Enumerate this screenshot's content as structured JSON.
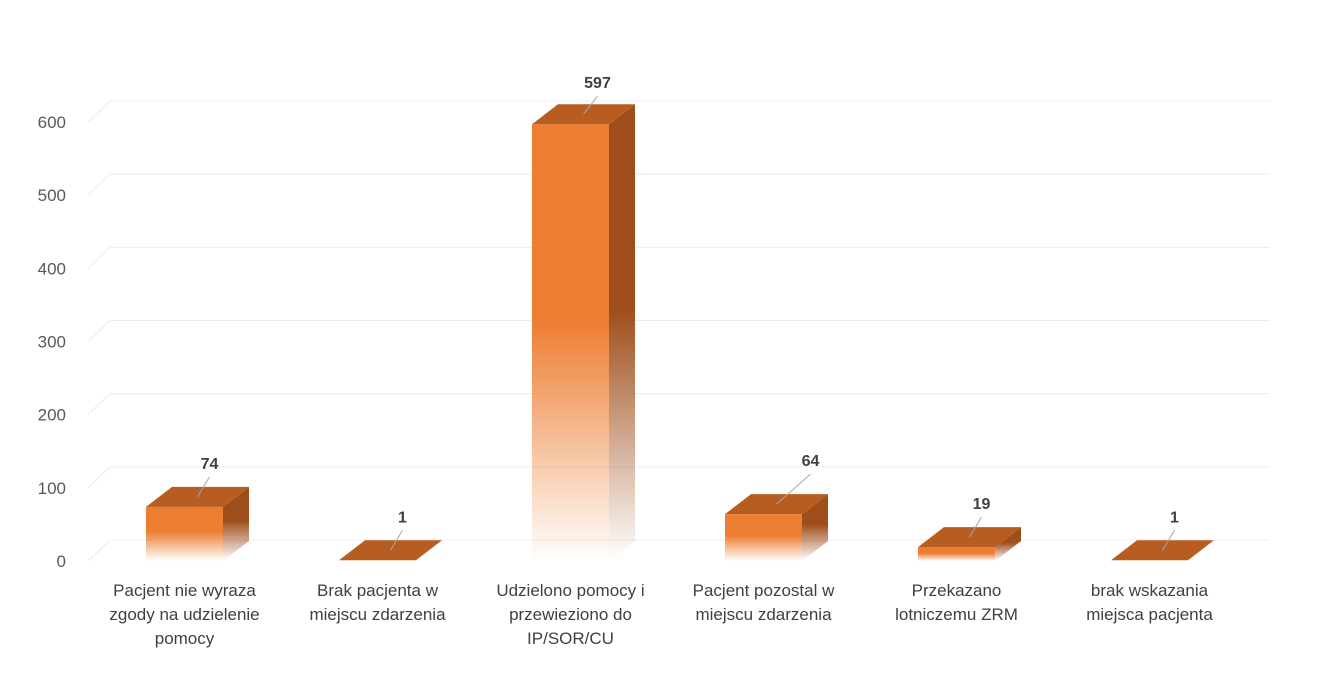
{
  "chart_data": {
    "type": "bar",
    "style": "3d-column",
    "categories": [
      [
        "Pacjent nie wyraza",
        "zgody na udzielenie",
        "pomocy"
      ],
      [
        "Brak pacjenta w",
        "miejscu zdarzenia"
      ],
      [
        "Udzielono pomocy i",
        "przewieziono do",
        "IP/SOR/CU"
      ],
      [
        "Pacjent pozostal w",
        "miejscu zdarzenia"
      ],
      [
        "Przekazano",
        "lotniczemu ZRM"
      ],
      [
        "brak wskazania",
        "miejsca pacjenta"
      ]
    ],
    "values": [
      74,
      1,
      597,
      64,
      19,
      1
    ],
    "data_labels": [
      "74",
      "1",
      "597",
      "64",
      "19",
      "1"
    ],
    "y_ticks": [
      "0",
      "100",
      "200",
      "300",
      "400",
      "500",
      "600"
    ],
    "ylim": [
      0,
      600
    ],
    "grid": true,
    "legend": "none",
    "colors": {
      "front": "#ed7d31",
      "top": "#b85d22",
      "side": "#9e4e1b",
      "grid": "#ececec",
      "leader": "#a6a6a6"
    }
  }
}
